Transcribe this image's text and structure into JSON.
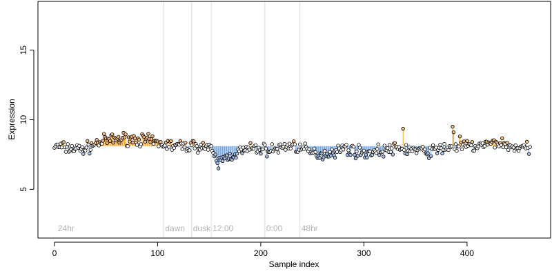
{
  "chart_data": {
    "type": "scatter",
    "xlabel": "Sample index",
    "ylabel": "Expression",
    "xlim": [
      -16,
      481
    ],
    "ylim": [
      1.5,
      18.5
    ],
    "xticks": [
      0,
      100,
      200,
      300,
      400
    ],
    "yticks": [
      5,
      10,
      15
    ],
    "baseline": 8.1,
    "n_points": 462,
    "phase_markers": [
      {
        "label": "24hr",
        "x": 2,
        "line": false
      },
      {
        "label": "dawn",
        "x": 106,
        "line": true
      },
      {
        "label": "dusk",
        "x": 133,
        "line": true
      },
      {
        "label": "12:00",
        "x": 152,
        "line": true
      },
      {
        "label": "0:00",
        "x": 204,
        "line": true
      },
      {
        "label": "48hr",
        "x": 238,
        "line": true
      }
    ],
    "trend_knots": [
      [
        0,
        8.1
      ],
      [
        10,
        8.0
      ],
      [
        20,
        7.9
      ],
      [
        30,
        7.9
      ],
      [
        40,
        8.3
      ],
      [
        50,
        8.5
      ],
      [
        60,
        8.6
      ],
      [
        70,
        8.65
      ],
      [
        80,
        8.6
      ],
      [
        90,
        8.5
      ],
      [
        100,
        8.3
      ],
      [
        110,
        8.2
      ],
      [
        120,
        8.1
      ],
      [
        130,
        8.1
      ],
      [
        140,
        8.15
      ],
      [
        150,
        8.0
      ],
      [
        155,
        7.3
      ],
      [
        160,
        7.1
      ],
      [
        170,
        7.4
      ],
      [
        180,
        7.7
      ],
      [
        190,
        7.9
      ],
      [
        200,
        7.9
      ],
      [
        210,
        7.8
      ],
      [
        220,
        8.0
      ],
      [
        230,
        8.2
      ],
      [
        240,
        7.9
      ],
      [
        250,
        7.6
      ],
      [
        260,
        7.5
      ],
      [
        270,
        7.7
      ],
      [
        280,
        7.9
      ],
      [
        290,
        7.8
      ],
      [
        300,
        7.6
      ],
      [
        310,
        7.7
      ],
      [
        320,
        7.8
      ],
      [
        330,
        7.9
      ],
      [
        340,
        7.9
      ],
      [
        350,
        7.8
      ],
      [
        360,
        7.7
      ],
      [
        370,
        7.8
      ],
      [
        380,
        8.0
      ],
      [
        390,
        8.1
      ],
      [
        400,
        8.1
      ],
      [
        410,
        8.1
      ],
      [
        420,
        8.2
      ],
      [
        430,
        8.4
      ],
      [
        440,
        8.1
      ],
      [
        450,
        8.0
      ],
      [
        461,
        7.9
      ]
    ],
    "outliers": [
      {
        "x": 338,
        "y": 9.35
      },
      {
        "x": 386,
        "y": 9.5
      },
      {
        "x": 387,
        "y": 9.1
      },
      {
        "x": 393,
        "y": 8.8
      },
      {
        "x": 159,
        "y": 6.5
      },
      {
        "x": 283,
        "y": 8.2
      }
    ],
    "colors": {
      "up_stem": "#ffa319",
      "down_stem": "#6a9de0",
      "point_fill_high": "#f2b97c",
      "point_fill_low": "#a9c2e8",
      "phase_line": "#dcdcdc",
      "phase_text": "#b3b3b3"
    }
  }
}
